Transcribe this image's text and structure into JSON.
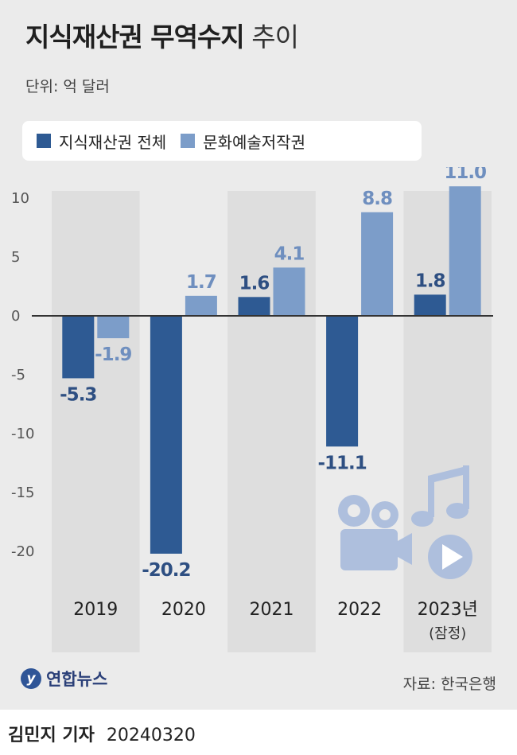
{
  "title": {
    "bold": "지식재산권 무역수지",
    "light": "추이"
  },
  "unit": "단위: 억 달러",
  "colors": {
    "series1": "#2e5a93",
    "series2": "#7c9dc9",
    "band": "#dedede",
    "axis": "#333333"
  },
  "chart_data": {
    "type": "bar",
    "categories": [
      "2019",
      "2020",
      "2021",
      "2022",
      "2023년"
    ],
    "category_notes": [
      "",
      "",
      "",
      "",
      "(잠정)"
    ],
    "series": [
      {
        "name": "지식재산권 전체",
        "values": [
          -5.3,
          -20.2,
          1.6,
          -11.1,
          1.8
        ]
      },
      {
        "name": "문화예술저작권",
        "values": [
          -1.9,
          1.7,
          4.1,
          8.8,
          11.0
        ]
      }
    ],
    "value_labels": [
      [
        "-5.3",
        "-20.2",
        "1.6",
        "-11.1",
        "1.8"
      ],
      [
        "-1.9",
        "1.7",
        "4.1",
        "8.8",
        "11.0"
      ]
    ],
    "yticks": [
      "10",
      "5",
      "0",
      "-5",
      "-10",
      "-15",
      "-20"
    ],
    "ytick_values": [
      10,
      5,
      0,
      -5,
      -10,
      -15,
      -20
    ],
    "ylim": [
      -22,
      11
    ],
    "ylabel": "",
    "xlabel": ""
  },
  "icons": [
    "film-camera-icon",
    "music-note-icon",
    "play-button-icon"
  ],
  "logo": {
    "mark": "y",
    "text": "연합뉴스"
  },
  "source": "자료: 한국은행",
  "credit": {
    "reporter": "김민지 기자",
    "date": "20240320"
  }
}
